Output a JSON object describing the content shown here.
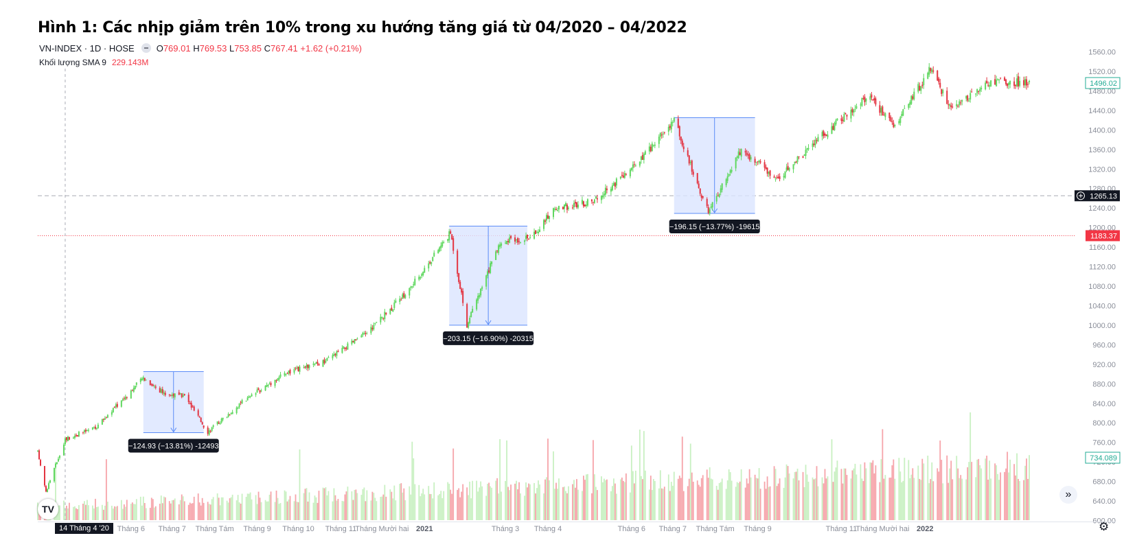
{
  "title": "Hình 1: Các nhịp giảm trên 10% trong xu hướng tăng giá từ 04/2020 – 04/2022",
  "legend": {
    "symbol": "VN-INDEX · 1D · HOSE",
    "open_key": "O",
    "open": "769.01",
    "high_key": "H",
    "high": "769.53",
    "low_key": "L",
    "low": "753.85",
    "close_key": "C",
    "close": "767.41",
    "change": "+1.62 (+0.21%)"
  },
  "volume_legend": {
    "label": "Khối lượng SMA 9",
    "value": "229.143M"
  },
  "crosshair_date": "14 Tháng 4 '20",
  "price_badges": {
    "crosshair": "1265.13",
    "last_close_line": "1183.37",
    "current": "1496.02",
    "volume": "734.089"
  },
  "icons": {
    "logo": "tradingview-logo-icon",
    "scroll": "scroll-right-icon",
    "settings": "gear-icon"
  },
  "logo_text": "TV",
  "scroll_glyph": "»",
  "gear_glyph": "⚙",
  "colors": {
    "up": "#5ed75e",
    "down": "#e3323f",
    "vol_up": "#c8f0c1",
    "vol_down": "#f6a3a9",
    "box": "#dbe5ff",
    "box_edge": "#5b8cf7",
    "axis_text": "#8a8e99"
  },
  "chart_data": {
    "type": "candlestick",
    "y_ticks": [
      "1560.00",
      "1520.00",
      "1480.00",
      "1440.00",
      "1400.00",
      "1360.00",
      "1320.00",
      "1280.00",
      "1240.00",
      "1200.00",
      "1160.00",
      "1120.00",
      "1080.00",
      "1040.00",
      "1000.00",
      "960.00",
      "920.00",
      "880.00",
      "840.00",
      "800.00",
      "760.00",
      "720.00",
      "680.00",
      "640.00",
      "600.00"
    ],
    "ylim": [
      600,
      1560
    ],
    "x_labels": [
      "Tháng 6",
      "Tháng 7",
      "Tháng Tám",
      "Tháng 9",
      "Tháng 10",
      "Tháng 11",
      "Tháng Mười hai",
      "2021",
      "Tháng 3",
      "Tháng 4",
      "Tháng 6",
      "Tháng 7",
      "Tháng Tám",
      "Tháng 9",
      "Tháng 11",
      "Tháng Mười hai",
      "2022"
    ],
    "x_label_dates": [
      "2020-06-01",
      "2020-07-01",
      "2020-08-01",
      "2020-09-01",
      "2020-10-01",
      "2020-11-01",
      "2020-12-01",
      "2021-01-01",
      "2021-03-01",
      "2021-04-01",
      "2021-06-01",
      "2021-07-01",
      "2021-08-01",
      "2021-09-01",
      "2021-11-01",
      "2021-12-01",
      "2022-01-01"
    ],
    "xlim": [
      "2020-03-25",
      "2022-04-20"
    ],
    "trend": [
      {
        "date": "2020-03-25",
        "close": 740
      },
      {
        "date": "2020-03-31",
        "close": 660
      },
      {
        "date": "2020-04-14",
        "close": 767
      },
      {
        "date": "2020-05-06",
        "close": 790
      },
      {
        "date": "2020-06-10",
        "close": 893
      },
      {
        "date": "2020-06-25",
        "close": 860
      },
      {
        "date": "2020-07-10",
        "close": 855
      },
      {
        "date": "2020-07-27",
        "close": 782
      },
      {
        "date": "2020-08-20",
        "close": 840
      },
      {
        "date": "2020-09-20",
        "close": 900
      },
      {
        "date": "2020-10-20",
        "close": 925
      },
      {
        "date": "2020-11-20",
        "close": 985
      },
      {
        "date": "2020-12-20",
        "close": 1070
      },
      {
        "date": "2021-01-20",
        "close": 1190
      },
      {
        "date": "2021-02-01",
        "close": 1000
      },
      {
        "date": "2021-02-25",
        "close": 1170
      },
      {
        "date": "2021-03-20",
        "close": 1180
      },
      {
        "date": "2021-04-05",
        "close": 1238
      },
      {
        "date": "2021-05-05",
        "close": 1255
      },
      {
        "date": "2021-06-05",
        "close": 1330
      },
      {
        "date": "2021-07-02",
        "close": 1420
      },
      {
        "date": "2021-07-27",
        "close": 1230
      },
      {
        "date": "2021-08-20",
        "close": 1360
      },
      {
        "date": "2021-09-15",
        "close": 1300
      },
      {
        "date": "2021-10-15",
        "close": 1380
      },
      {
        "date": "2021-11-20",
        "close": 1470
      },
      {
        "date": "2021-12-10",
        "close": 1410
      },
      {
        "date": "2022-01-05",
        "close": 1525
      },
      {
        "date": "2022-01-20",
        "close": 1440
      },
      {
        "date": "2022-02-20",
        "close": 1500
      },
      {
        "date": "2022-03-20",
        "close": 1496
      }
    ],
    "measurements": [
      {
        "from_date": "2020-06-10",
        "to_date": "2020-07-24",
        "high": 905,
        "low": 780,
        "label": "−124.93 (−13.81%) -12493"
      },
      {
        "from_date": "2021-01-19",
        "to_date": "2021-03-17",
        "high": 1203,
        "low": 1000,
        "label": "−203.15 (−16.90%) -20315"
      },
      {
        "from_date": "2021-07-02",
        "to_date": "2021-08-30",
        "high": 1425,
        "low": 1229,
        "label": "−196.15 (−13.77%) -19615"
      }
    ],
    "reference_lines": [
      {
        "value": 1265.13,
        "style": "dashed-gray"
      },
      {
        "value": 1183.37,
        "style": "dotted-red"
      }
    ],
    "crosshair_x_date": "2020-04-14",
    "volume_series": "daily volume bars beneath price, green for up days, red for down days"
  }
}
